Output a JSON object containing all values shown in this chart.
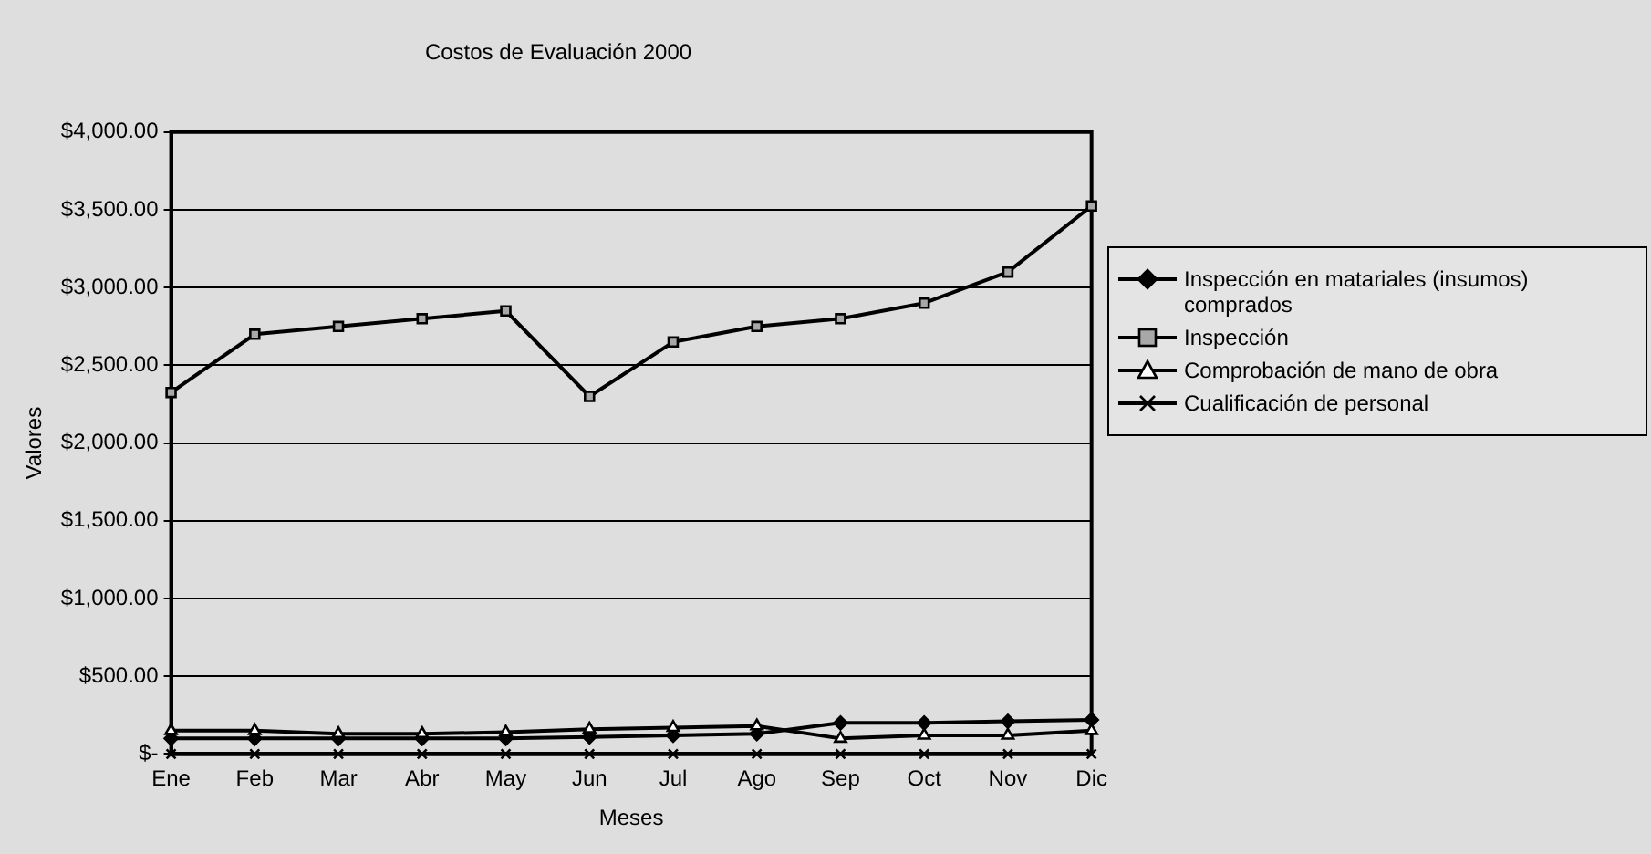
{
  "chart_data": {
    "type": "line",
    "title": "Costos de Evaluación 2000",
    "xlabel": "Meses",
    "ylabel": "Valores",
    "categories": [
      "Ene",
      "Feb",
      "Mar",
      "Abr",
      "May",
      "Jun",
      "Jul",
      "Ago",
      "Sep",
      "Oct",
      "Nov",
      "Dic"
    ],
    "series": [
      {
        "name": "Inspección en matariales (insumos) comprados",
        "color": "#000000",
        "marker": "diamond",
        "values": [
          100,
          100,
          100,
          100,
          100,
          110,
          120,
          130,
          200,
          200,
          210,
          220
        ]
      },
      {
        "name": "Inspección",
        "color": "#000000",
        "marker": "square",
        "values": [
          2325,
          2700,
          2750,
          2800,
          2850,
          2300,
          2650,
          2750,
          2800,
          2900,
          3100,
          3525
        ]
      },
      {
        "name": "Comprobación de mano de obra",
        "color": "#000000",
        "marker": "triangle",
        "values": [
          150,
          150,
          130,
          130,
          140,
          160,
          170,
          180,
          100,
          120,
          120,
          150
        ]
      },
      {
        "name": "Cualificación de personal",
        "color": "#000000",
        "marker": "cross",
        "values": [
          0,
          0,
          0,
          0,
          0,
          0,
          0,
          0,
          0,
          0,
          0,
          0
        ]
      }
    ],
    "ylim": [
      0,
      4000
    ],
    "yticks": [
      {
        "value": 0,
        "label": "$-"
      },
      {
        "value": 500,
        "label": "$500.00"
      },
      {
        "value": 1000,
        "label": "$1,000.00"
      },
      {
        "value": 1500,
        "label": "$1,500.00"
      },
      {
        "value": 2000,
        "label": "$2,000.00"
      },
      {
        "value": 2500,
        "label": "$2,500.00"
      },
      {
        "value": 3000,
        "label": "$3,000.00"
      },
      {
        "value": 3500,
        "label": "$3,500.00"
      },
      {
        "value": 4000,
        "label": "$4,000.00"
      }
    ],
    "grid": "y",
    "legend": "right"
  }
}
